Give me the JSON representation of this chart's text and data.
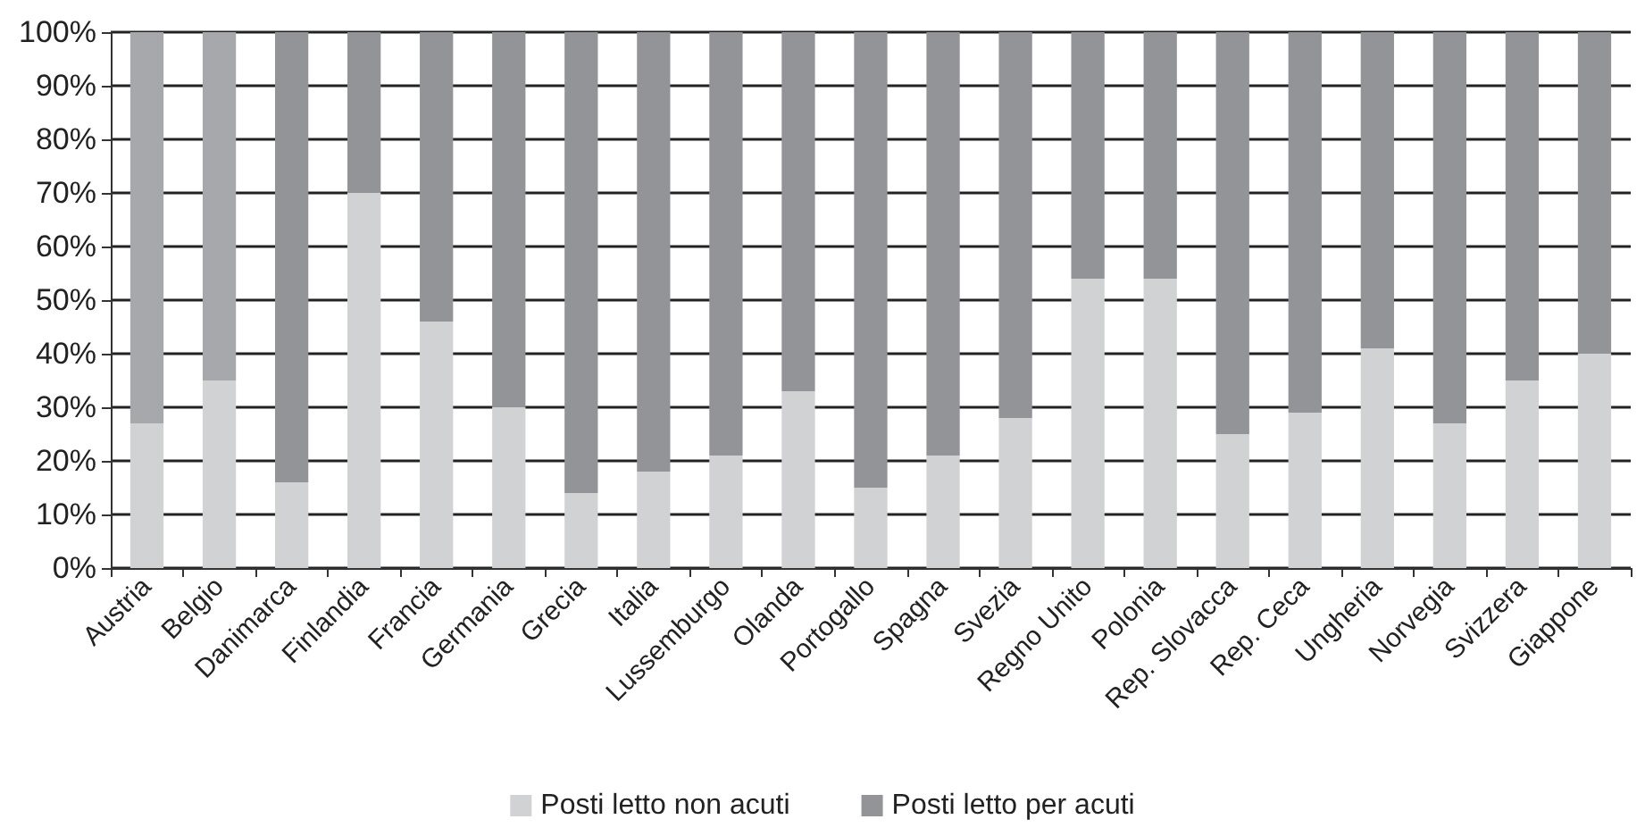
{
  "chart_data": {
    "type": "bar",
    "stacked": true,
    "categories": [
      "Austria",
      "Belgio",
      "Danimarca",
      "Finlandia",
      "Francia",
      "Germania",
      "Grecia",
      "Italia",
      "Lussemburgo",
      "Olanda",
      "Portogallo",
      "Spagna",
      "Svezia",
      "Regno Unito",
      "Polonia",
      "Rep. Slovacca",
      "Rep. Ceca",
      "Ungheria",
      "Norvegia",
      "Svizzera",
      "Giappone"
    ],
    "series": [
      {
        "name": "Posti letto non acuti",
        "color": "#d1d2d4",
        "values": [
          27,
          35,
          16,
          70,
          46,
          30,
          14,
          18,
          21,
          33,
          15,
          21,
          28,
          54,
          54,
          25,
          29,
          41,
          27,
          35,
          40
        ]
      },
      {
        "name": "Posti letto per acuti",
        "color": "#939498",
        "colors": [
          "#a7a8ab",
          "#a7a8ab",
          "#939498",
          "#939498",
          "#939498",
          "#939498",
          "#939498",
          "#939498",
          "#939498",
          "#939498",
          "#939498",
          "#939498",
          "#939498",
          "#939498",
          "#939498",
          "#939498",
          "#939498",
          "#939498",
          "#939498",
          "#939498",
          "#939498"
        ],
        "values": [
          73,
          65,
          84,
          30,
          54,
          70,
          86,
          82,
          79,
          67,
          85,
          79,
          72,
          46,
          46,
          75,
          71,
          59,
          73,
          65,
          60
        ]
      }
    ],
    "ylim": [
      0,
      100
    ],
    "yticks": [
      {
        "value": 0,
        "label": "0%"
      },
      {
        "value": 10,
        "label": "10%"
      },
      {
        "value": 20,
        "label": "20%"
      },
      {
        "value": 30,
        "label": "30%"
      },
      {
        "value": 40,
        "label": "40%"
      },
      {
        "value": 50,
        "label": "50%"
      },
      {
        "value": 60,
        "label": "60%"
      },
      {
        "value": 70,
        "label": "70%"
      },
      {
        "value": 80,
        "label": "80%"
      },
      {
        "value": 90,
        "label": "90%"
      },
      {
        "value": 100,
        "label": "100%"
      }
    ],
    "grid": "y",
    "legend": "bottom"
  }
}
